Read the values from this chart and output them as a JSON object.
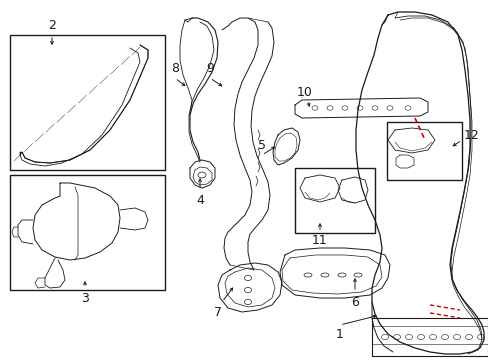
{
  "background_color": "#ffffff",
  "line_color": "#1a1a1a",
  "red_color": "#cc0000",
  "figsize": [
    4.89,
    3.6
  ],
  "dpi": 100
}
